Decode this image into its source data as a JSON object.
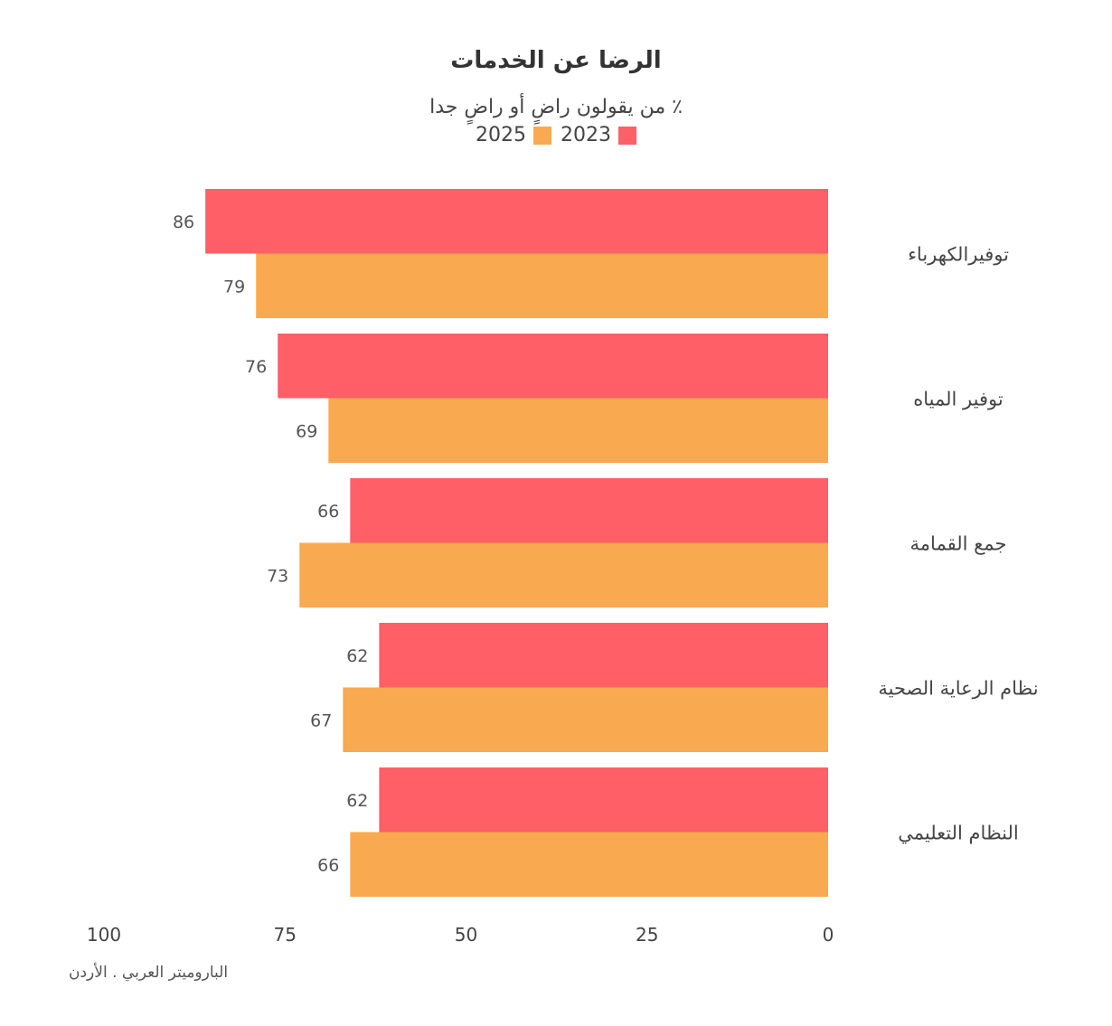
{
  "chart_data": {
    "type": "bar",
    "orientation": "horizontal",
    "title": "الرضا عن الخدمات",
    "subtitle": "٪ من يقولون راضٍ أو راضٍ جدا",
    "categories": [
      "توفيرالكهرباء",
      "توفير المياه",
      "جمع القمامة",
      "نظام الرعاية الصحية",
      "النظام التعليمي"
    ],
    "series": [
      {
        "name": "2023",
        "color": "#FF5F66",
        "values": [
          86,
          76,
          66,
          62,
          62
        ]
      },
      {
        "name": "2025",
        "color": "#F9A94F",
        "values": [
          79,
          69,
          73,
          67,
          66
        ]
      }
    ],
    "xlim": [
      0,
      100
    ],
    "x_ticks": [
      100,
      75,
      50,
      25,
      0
    ],
    "x_direction": "reversed",
    "legend_position": "top-center",
    "grid": false,
    "source": "الباروميتر العربي . الأردن"
  }
}
